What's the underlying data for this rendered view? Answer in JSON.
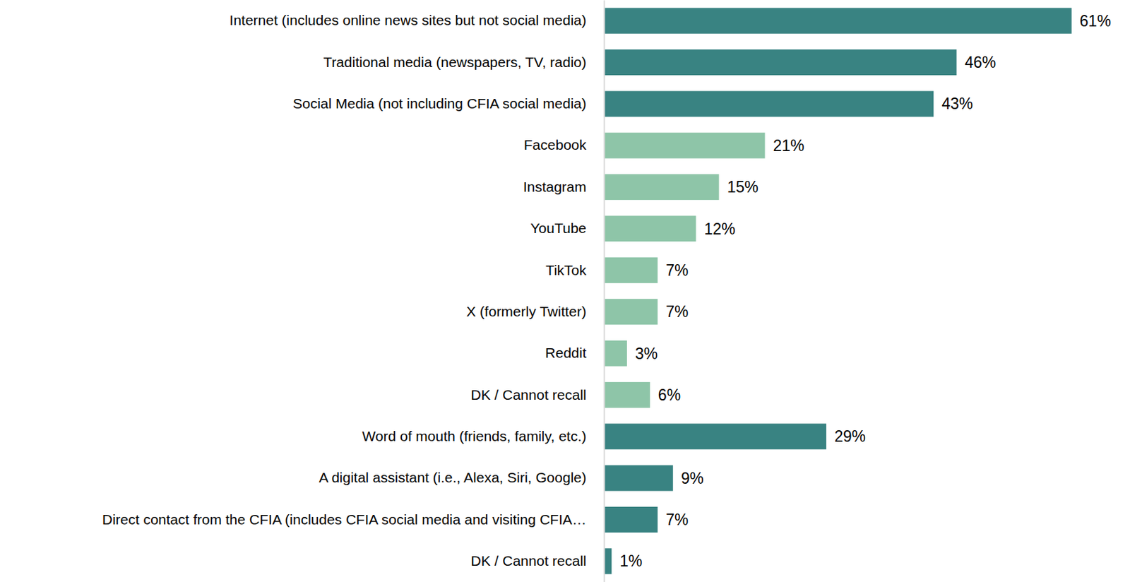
{
  "chart_data": {
    "type": "bar",
    "orientation": "horizontal",
    "categories": [
      "Internet (includes online news sites but not social media)",
      "Traditional media (newspapers, TV, radio)",
      "Social Media (not including CFIA social media)",
      "Facebook",
      "Instagram",
      "YouTube",
      "TikTok",
      "X (formerly Twitter)",
      "Reddit",
      "DK / Cannot recall",
      "Word of mouth (friends, family, etc.)",
      "A digital assistant (i.e., Alexa, Siri, Google)",
      "Direct contact from the CFIA (includes CFIA social media and visiting CFIA…",
      "DK / Cannot recall"
    ],
    "values": [
      61,
      46,
      43,
      21,
      15,
      12,
      7,
      7,
      3,
      6,
      29,
      9,
      7,
      1
    ],
    "value_labels": [
      "61%",
      "46%",
      "43%",
      "21%",
      "15%",
      "12%",
      "7%",
      "7%",
      "3%",
      "6%",
      "29%",
      "9%",
      "7%",
      "1%"
    ],
    "colors": [
      "#398382",
      "#398382",
      "#398382",
      "#8ec5a8",
      "#8ec5a8",
      "#8ec5a8",
      "#8ec5a8",
      "#8ec5a8",
      "#8ec5a8",
      "#8ec5a8",
      "#398382",
      "#398382",
      "#398382",
      "#398382"
    ],
    "xlim": [
      0,
      68
    ],
    "data_labels": true,
    "tick_labels": "y",
    "grid": false
  }
}
